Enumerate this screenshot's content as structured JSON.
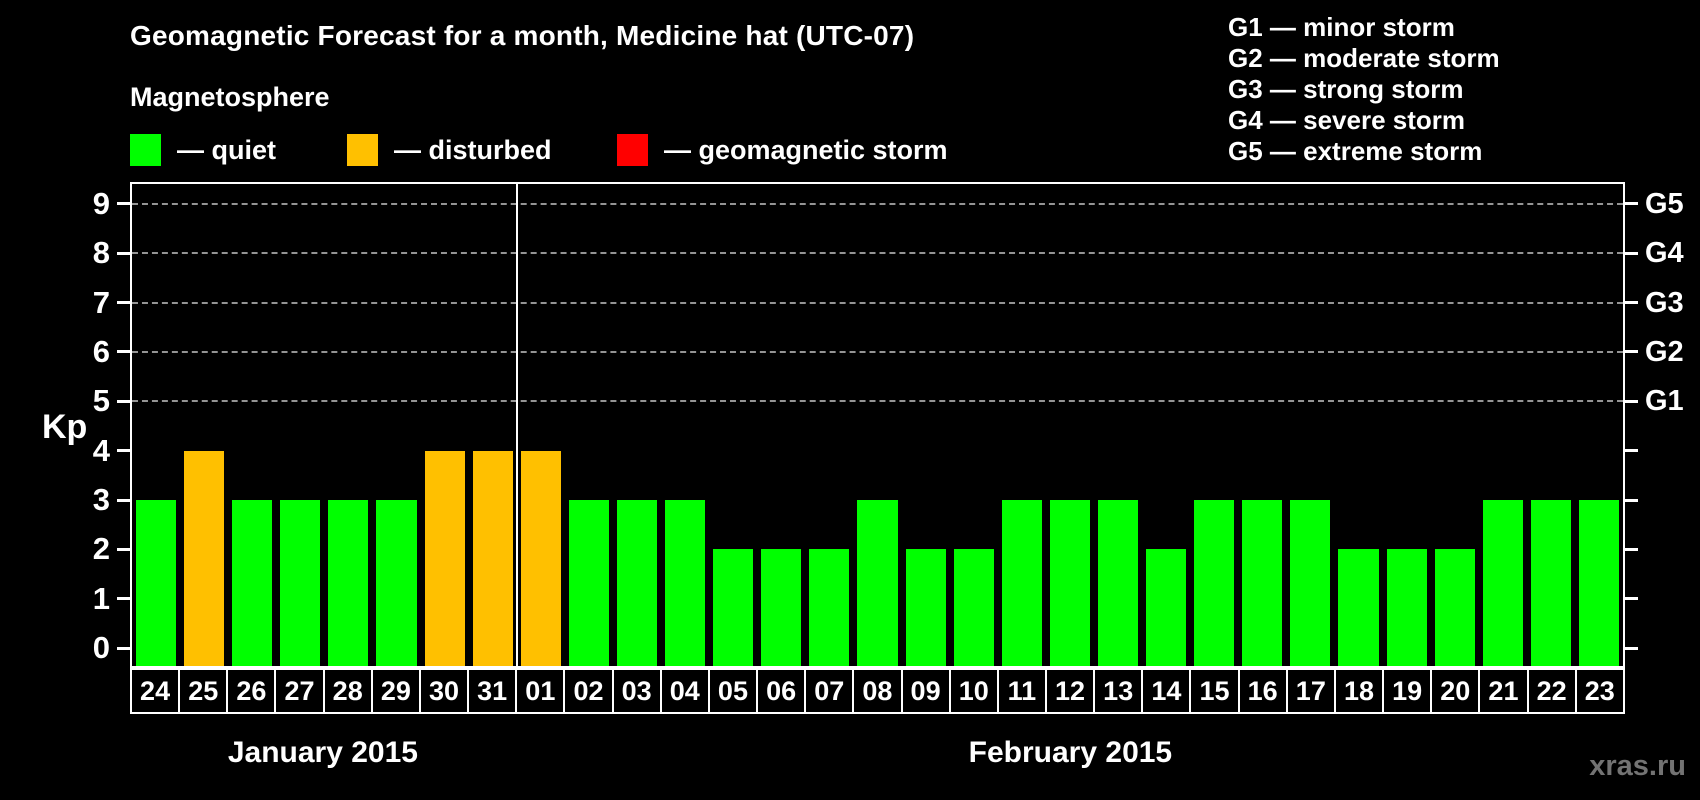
{
  "header": {
    "title": "Geomagnetic Forecast for a month, Medicine hat (UTC-07)",
    "subtitle": "Magnetosphere",
    "status_legend": [
      {
        "key": "quiet",
        "label": "— quiet",
        "color": "#00ff00"
      },
      {
        "key": "disturbed",
        "label": "— disturbed",
        "color": "#ffc000"
      },
      {
        "key": "storm",
        "label": "— geomagnetic storm",
        "color": "#ff0000"
      }
    ],
    "g_scale_legend": [
      "G1 — minor storm",
      "G2 — moderate storm",
      "G3 — strong storm",
      "G4 — severe storm",
      "G5 — extreme storm"
    ]
  },
  "chart_data": {
    "type": "bar",
    "title": "Geomagnetic Forecast for a month, Medicine hat (UTC-07)",
    "ylabel": "Kp",
    "ylim": [
      -0.36,
      9.4
    ],
    "y_ticks": [
      0,
      1,
      2,
      3,
      4,
      5,
      6,
      7,
      8,
      9
    ],
    "grid_levels": [
      5,
      6,
      7,
      8,
      9
    ],
    "grid_on": true,
    "legend_position": "top",
    "right_axis_labels": [
      {
        "level": 5,
        "label": "G1"
      },
      {
        "level": 6,
        "label": "G2"
      },
      {
        "level": 7,
        "label": "G3"
      },
      {
        "level": 8,
        "label": "G4"
      },
      {
        "level": 9,
        "label": "G5"
      }
    ],
    "status_colors": {
      "quiet": "#00ff00",
      "disturbed": "#ffc000",
      "storm": "#ff0000"
    },
    "months": [
      {
        "label": "January 2015",
        "count": 8
      },
      {
        "label": "February 2015",
        "count": 23
      }
    ],
    "categories": [
      "24",
      "25",
      "26",
      "27",
      "28",
      "29",
      "30",
      "31",
      "01",
      "02",
      "03",
      "04",
      "05",
      "06",
      "07",
      "08",
      "09",
      "10",
      "11",
      "12",
      "13",
      "14",
      "15",
      "16",
      "17",
      "18",
      "19",
      "20",
      "21",
      "22",
      "23"
    ],
    "values": [
      3,
      4,
      3,
      3,
      3,
      3,
      4,
      4,
      4,
      3,
      3,
      3,
      2,
      2,
      2,
      3,
      2,
      2,
      3,
      3,
      3,
      2,
      3,
      3,
      3,
      2,
      2,
      2,
      3,
      3,
      3
    ],
    "statuses": [
      "quiet",
      "disturbed",
      "quiet",
      "quiet",
      "quiet",
      "quiet",
      "disturbed",
      "disturbed",
      "disturbed",
      "quiet",
      "quiet",
      "quiet",
      "quiet",
      "quiet",
      "quiet",
      "quiet",
      "quiet",
      "quiet",
      "quiet",
      "quiet",
      "quiet",
      "quiet",
      "quiet",
      "quiet",
      "quiet",
      "quiet",
      "quiet",
      "quiet",
      "quiet",
      "quiet",
      "quiet"
    ]
  },
  "watermark": "xras.ru"
}
